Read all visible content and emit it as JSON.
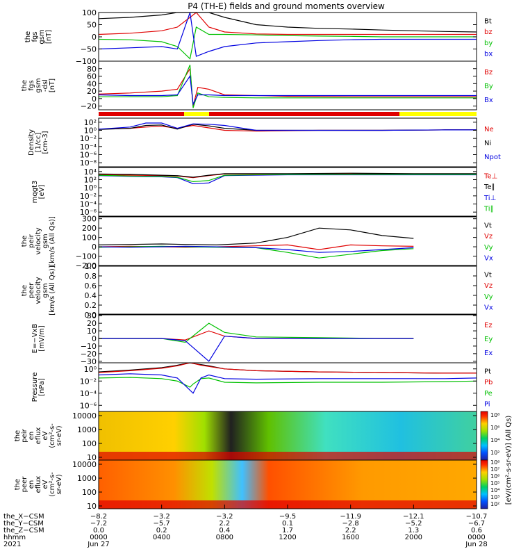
{
  "title": "P4 (TH-E) fields and ground moments overview",
  "colors": {
    "black": "#000000",
    "red": "#e00000",
    "green": "#00c000",
    "blue": "#0000e0",
    "yellow": "#ffff00"
  },
  "panels": [
    {
      "id": "fgs-gsm",
      "ylabel": [
        "the",
        "fgs",
        "gsm",
        "[nT]"
      ],
      "ticks": [
        "100",
        "50",
        "0",
        "−50",
        "−100"
      ],
      "tickvals": [
        100,
        50,
        0,
        -50,
        -100
      ],
      "ylim": [
        -100,
        100
      ],
      "legend": [
        {
          "name": "Bt",
          "color": "#000000"
        },
        {
          "name": "bz",
          "color": "#e00000"
        },
        {
          "name": "by",
          "color": "#00c000"
        },
        {
          "name": "bx",
          "color": "#0000e0"
        }
      ]
    },
    {
      "id": "fgs-gsm-dsl",
      "ylabel": [
        "the",
        "fgs",
        "gsm",
        "-dsl",
        "[nT]"
      ],
      "ticks": [
        "80",
        "60",
        "40",
        "20",
        "0",
        "−20"
      ],
      "tickvals": [
        80,
        60,
        40,
        20,
        0,
        -20
      ],
      "ylim": [
        -30,
        100
      ],
      "legend": [
        {
          "name": "Bz",
          "color": "#e00000"
        },
        {
          "name": "By",
          "color": "#00c000"
        },
        {
          "name": "Bx",
          "color": "#0000e0"
        }
      ]
    },
    {
      "id": "density",
      "ylabel": [
        "Density",
        "[1/cc]",
        "[cm-3]"
      ],
      "ticks": [
        "10²",
        "10⁰",
        "10⁻²",
        "10⁻⁴",
        "10⁻⁶",
        "10⁻⁸"
      ],
      "tickvals": [
        2,
        0,
        -2,
        -4,
        -6,
        -8
      ],
      "ylim": [
        -9,
        3
      ],
      "legend": [
        {
          "name": "Ne",
          "color": "#e00000"
        },
        {
          "name": "Ni",
          "color": "#000000"
        },
        {
          "name": "Npot",
          "color": "#0000e0"
        }
      ]
    },
    {
      "id": "temperature",
      "ylabel": [
        "mqgt3",
        "[eV]"
      ],
      "ticks": [
        "10⁴",
        "10²",
        "10⁰",
        "10⁻²",
        "10⁻⁴",
        "10⁻⁶"
      ],
      "tickvals": [
        4,
        2,
        0,
        -2,
        -4,
        -6
      ],
      "ylim": [
        -7,
        5
      ],
      "legend": [
        {
          "name": "Te⊥",
          "color": "#e00000"
        },
        {
          "name": "Te∥",
          "color": "#000000"
        },
        {
          "name": "Ti⊥",
          "color": "#0000e0"
        },
        {
          "name": "Ti∥",
          "color": "#00c000"
        }
      ]
    },
    {
      "id": "peir-velocity",
      "ylabel": [
        "the",
        "peir",
        "velocity",
        "gsm",
        "[km/s (All Qs)]"
      ],
      "ticks": [
        "300",
        "200",
        "100",
        "0",
        "−100",
        "−200"
      ],
      "tickvals": [
        300,
        200,
        100,
        0,
        -100,
        -200
      ],
      "ylim": [
        -200,
        320
      ],
      "legend": [
        {
          "name": "Vt",
          "color": "#000000"
        },
        {
          "name": "Vz",
          "color": "#e00000"
        },
        {
          "name": "Vy",
          "color": "#00c000"
        },
        {
          "name": "Vx",
          "color": "#0000e0"
        }
      ]
    },
    {
      "id": "peer-velocity",
      "ylabel": [
        "the",
        "peer",
        "velocity",
        "gsm",
        "[km/s (All Qs)]"
      ],
      "ticks": [
        "1.0",
        "0.8",
        "0.6",
        "0.4",
        "0.2",
        "0.0"
      ],
      "tickvals": [
        1.0,
        0.8,
        0.6,
        0.4,
        0.2,
        0.0
      ],
      "ylim": [
        0,
        1
      ],
      "legend": [
        {
          "name": "Vt",
          "color": "#000000"
        },
        {
          "name": "Vz",
          "color": "#e00000"
        },
        {
          "name": "Vy",
          "color": "#00c000"
        },
        {
          "name": "Vx",
          "color": "#0000e0"
        }
      ]
    },
    {
      "id": "efield",
      "ylabel": [
        "E=−VxB",
        "[mV/m]"
      ],
      "ticks": [
        "30",
        "20",
        "10",
        "0",
        "−10",
        "−20",
        "−30"
      ],
      "tickvals": [
        30,
        20,
        10,
        0,
        -10,
        -20,
        -30
      ],
      "ylim": [
        -32,
        32
      ],
      "legend": [
        {
          "name": "Ez",
          "color": "#e00000"
        },
        {
          "name": "Ey",
          "color": "#00c000"
        },
        {
          "name": "Ex",
          "color": "#0000e0"
        }
      ]
    },
    {
      "id": "pressure",
      "ylabel": [
        "Pressure",
        "[nPa]"
      ],
      "ticks": [
        "10⁰",
        "10⁻²",
        "10⁻⁴",
        "10⁻⁶"
      ],
      "tickvals": [
        0,
        -2,
        -4,
        -6
      ],
      "ylim": [
        -7,
        1
      ],
      "legend": [
        {
          "name": "Pt",
          "color": "#000000"
        },
        {
          "name": "Pb",
          "color": "#e00000"
        },
        {
          "name": "Pe",
          "color": "#00c000"
        },
        {
          "name": "Pi",
          "color": "#0000e0"
        }
      ]
    },
    {
      "id": "peir-spec",
      "ylabel": [
        "the",
        "peir",
        "en",
        "eflux",
        "eV",
        "(cm²-s-",
        "sr-eV)"
      ],
      "ticks": [
        "10000",
        "1000",
        "100",
        "10"
      ],
      "tickvals": [
        4,
        3,
        2,
        1
      ],
      "ylim": [
        0.8,
        4.3
      ]
    },
    {
      "id": "peer-spec",
      "ylabel": [
        "the",
        "peer",
        "en",
        "eflux",
        "eV",
        "(cm²-s-",
        "sr-eV)"
      ],
      "ticks": [
        "10000",
        "1000",
        "100",
        "10"
      ],
      "tickvals": [
        4,
        3,
        2,
        1
      ],
      "ylim": [
        0.8,
        4.3
      ]
    }
  ],
  "colorbar": {
    "label": "[eV/(cm²-s-sr-eV)] (All Qs)",
    "ticks": [
      "10⁸",
      "10⁶",
      "10⁴",
      "10²"
    ]
  },
  "colorbar2": {
    "ticks": [
      "10⁸",
      "10⁷",
      "10⁶",
      "10⁵",
      "10⁴",
      "10³",
      "10²"
    ]
  },
  "xaxis": {
    "rows": [
      {
        "label": "the_X−CSM",
        "values": [
          "−8.2",
          "−3.2",
          "−3.2",
          "−9.5",
          "−11.9",
          "−12.1",
          "−10.7"
        ]
      },
      {
        "label": "the_Y−CSM",
        "values": [
          "−7.2",
          "−5.7",
          "2.2",
          "0.1",
          "−2.8",
          "−5.2",
          "−6.7"
        ]
      },
      {
        "label": "the_Z−CSM",
        "values": [
          "0.0",
          "0.2",
          "0.4",
          "1.7",
          "2.2",
          "1.3",
          "0.6"
        ]
      },
      {
        "label": "hhmm",
        "values": [
          "0000",
          "0400",
          "0800",
          "1200",
          "1600",
          "2000",
          "0000"
        ]
      },
      {
        "label": "2021",
        "values": [
          "Jun 27",
          "",
          "",
          "",
          "",
          "",
          "Jun 28"
        ]
      }
    ]
  },
  "chart_data": [
    {
      "type": "line",
      "panel": "fgs-gsm",
      "x_hours": [
        0,
        2,
        4,
        5,
        5.8,
        6.2,
        7,
        8,
        10,
        12,
        14,
        16,
        18,
        20,
        22,
        24
      ],
      "series": [
        {
          "name": "Bt",
          "values": [
            75,
            80,
            90,
            100,
            100,
            100,
            100,
            80,
            50,
            40,
            35,
            32,
            28,
            25,
            22,
            20
          ]
        },
        {
          "name": "bz",
          "values": [
            10,
            15,
            25,
            40,
            80,
            100,
            40,
            20,
            12,
            10,
            10,
            10,
            10,
            10,
            10,
            10
          ]
        },
        {
          "name": "by",
          "values": [
            -10,
            -12,
            -20,
            -40,
            -90,
            40,
            10,
            10,
            8,
            5,
            3,
            2,
            0,
            0,
            0,
            0
          ]
        },
        {
          "name": "bx",
          "values": [
            -50,
            -45,
            -40,
            -50,
            100,
            -80,
            -60,
            -40,
            -25,
            -20,
            -15,
            -12,
            -10,
            -10,
            -10,
            -10
          ]
        }
      ]
    },
    {
      "type": "line",
      "panel": "fgs-gsm-dsl",
      "x_hours": [
        0,
        2,
        4,
        5,
        5.8,
        6,
        6.3,
        7,
        8,
        10,
        12,
        16,
        20,
        24
      ],
      "series": [
        {
          "name": "Bz",
          "values": [
            12,
            15,
            20,
            25,
            80,
            -20,
            30,
            25,
            10,
            8,
            6,
            5,
            5,
            5
          ]
        },
        {
          "name": "By",
          "values": [
            5,
            5,
            5,
            8,
            90,
            -25,
            15,
            5,
            3,
            2,
            2,
            2,
            2,
            2
          ]
        },
        {
          "name": "Bx",
          "values": [
            10,
            8,
            8,
            10,
            60,
            -15,
            10,
            10,
            8,
            8,
            8,
            8,
            8,
            8
          ]
        }
      ]
    },
    {
      "type": "line",
      "panel": "density",
      "x_hours": [
        0,
        2,
        3,
        4,
        5,
        6,
        7,
        8,
        10,
        14,
        18,
        22,
        24
      ],
      "series": [
        {
          "name": "Ne",
          "values": [
            0.3,
            0.5,
            0.8,
            1.0,
            0.5,
            1.2,
            0.6,
            0,
            -0.2,
            0,
            0,
            0.1,
            0.1
          ]
        },
        {
          "name": "Ni",
          "values": [
            0.2,
            0.5,
            1.2,
            1.3,
            0.3,
            1.5,
            1.1,
            0.5,
            0,
            0,
            0,
            0.1,
            0.1
          ]
        },
        {
          "name": "Npot",
          "values": [
            0.3,
            0.8,
            1.8,
            1.8,
            0.5,
            1.6,
            1.5,
            1.2,
            0,
            0,
            0,
            0.1,
            0.1
          ]
        }
      ]
    },
    {
      "type": "line",
      "panel": "temperature",
      "x_hours": [
        0,
        2,
        4,
        5,
        6,
        7,
        8,
        12,
        16,
        20,
        24
      ],
      "series": [
        {
          "name": "Te⊥",
          "values": [
            3.2,
            3.1,
            3.0,
            2.9,
            2.5,
            3.0,
            3.4,
            3.4,
            3.5,
            3.4,
            3.4
          ]
        },
        {
          "name": "Te∥",
          "values": [
            3.4,
            3.3,
            3.1,
            3.0,
            2.6,
            3.1,
            3.5,
            3.5,
            3.6,
            3.5,
            3.5
          ]
        },
        {
          "name": "Ti⊥",
          "values": [
            3.0,
            2.8,
            2.7,
            2.5,
            1.0,
            1.2,
            3.0,
            3.2,
            3.2,
            3.2,
            3.2
          ]
        },
        {
          "name": "Ti∥",
          "values": [
            3.1,
            2.9,
            2.8,
            2.6,
            1.5,
            1.8,
            3.1,
            3.3,
            3.3,
            3.3,
            3.3
          ]
        }
      ]
    },
    {
      "type": "line",
      "panel": "peir-velocity",
      "x_hours": [
        0,
        2,
        4,
        5.5,
        7.5,
        10,
        12,
        14,
        16,
        18,
        20
      ],
      "series": [
        {
          "name": "Vt",
          "values": [
            20,
            25,
            30,
            25,
            20,
            40,
            100,
            200,
            180,
            120,
            90
          ]
        },
        {
          "name": "Vz",
          "values": [
            0,
            5,
            0,
            -5,
            0,
            10,
            20,
            -30,
            20,
            10,
            5
          ]
        },
        {
          "name": "Vy",
          "values": [
            -5,
            0,
            5,
            0,
            -5,
            -10,
            -60,
            -120,
            -80,
            -40,
            -20
          ]
        },
        {
          "name": "Vx",
          "values": [
            0,
            -5,
            0,
            5,
            0,
            -10,
            -30,
            -60,
            -50,
            -30,
            -10
          ]
        }
      ]
    },
    {
      "type": "line",
      "panel": "peer-velocity",
      "x_hours": [],
      "series": []
    },
    {
      "type": "line",
      "panel": "efield",
      "x_hours": [
        0,
        2,
        4,
        5.5,
        7,
        8,
        10,
        14,
        18,
        20
      ],
      "series": [
        {
          "name": "Ez",
          "values": [
            0,
            0,
            0,
            -2,
            10,
            3,
            0,
            0,
            0,
            0
          ]
        },
        {
          "name": "Ey",
          "values": [
            0,
            0,
            0,
            -5,
            20,
            8,
            2,
            1,
            0,
            0
          ]
        },
        {
          "name": "Ex",
          "values": [
            0,
            0,
            0,
            -3,
            -30,
            3,
            0,
            0,
            0,
            0
          ]
        }
      ]
    },
    {
      "type": "line",
      "panel": "pressure",
      "x_hours": [
        0,
        2,
        4,
        5,
        5.8,
        6,
        6.5,
        7,
        8,
        10,
        14,
        18,
        22,
        24
      ],
      "series": [
        {
          "name": "Pt",
          "values": [
            -0.5,
            -0.2,
            0.2,
            0.6,
            1.0,
            0.9,
            0.7,
            0.5,
            0.0,
            -0.3,
            -0.5,
            -0.6,
            -0.7,
            -0.7
          ]
        },
        {
          "name": "Pb",
          "values": [
            -0.6,
            -0.3,
            0.1,
            0.5,
            1.0,
            0.9,
            0.6,
            0.4,
            0.0,
            -0.3,
            -0.5,
            -0.6,
            -0.7,
            -0.7
          ]
        },
        {
          "name": "Pe",
          "values": [
            -1.5,
            -1.4,
            -1.6,
            -2.0,
            -3.0,
            -2.5,
            -1.6,
            -1.5,
            -2.2,
            -2.3,
            -2.2,
            -2.2,
            -2.1,
            -2.0
          ]
        },
        {
          "name": "Pi",
          "values": [
            -1.0,
            -0.8,
            -1.0,
            -1.5,
            -3.5,
            -4.0,
            -1.5,
            -1.0,
            -1.6,
            -1.7,
            -1.6,
            -1.6,
            -1.6,
            -1.5
          ]
        }
      ]
    },
    {
      "type": "heatmap",
      "panel": "peir-spec",
      "ylabel": "eV",
      "yticks": [
        "10000",
        "1000",
        "100",
        "10"
      ]
    },
    {
      "type": "heatmap",
      "panel": "peer-spec",
      "ylabel": "eV",
      "yticks": [
        "10000",
        "1000",
        "100",
        "10"
      ]
    }
  ]
}
